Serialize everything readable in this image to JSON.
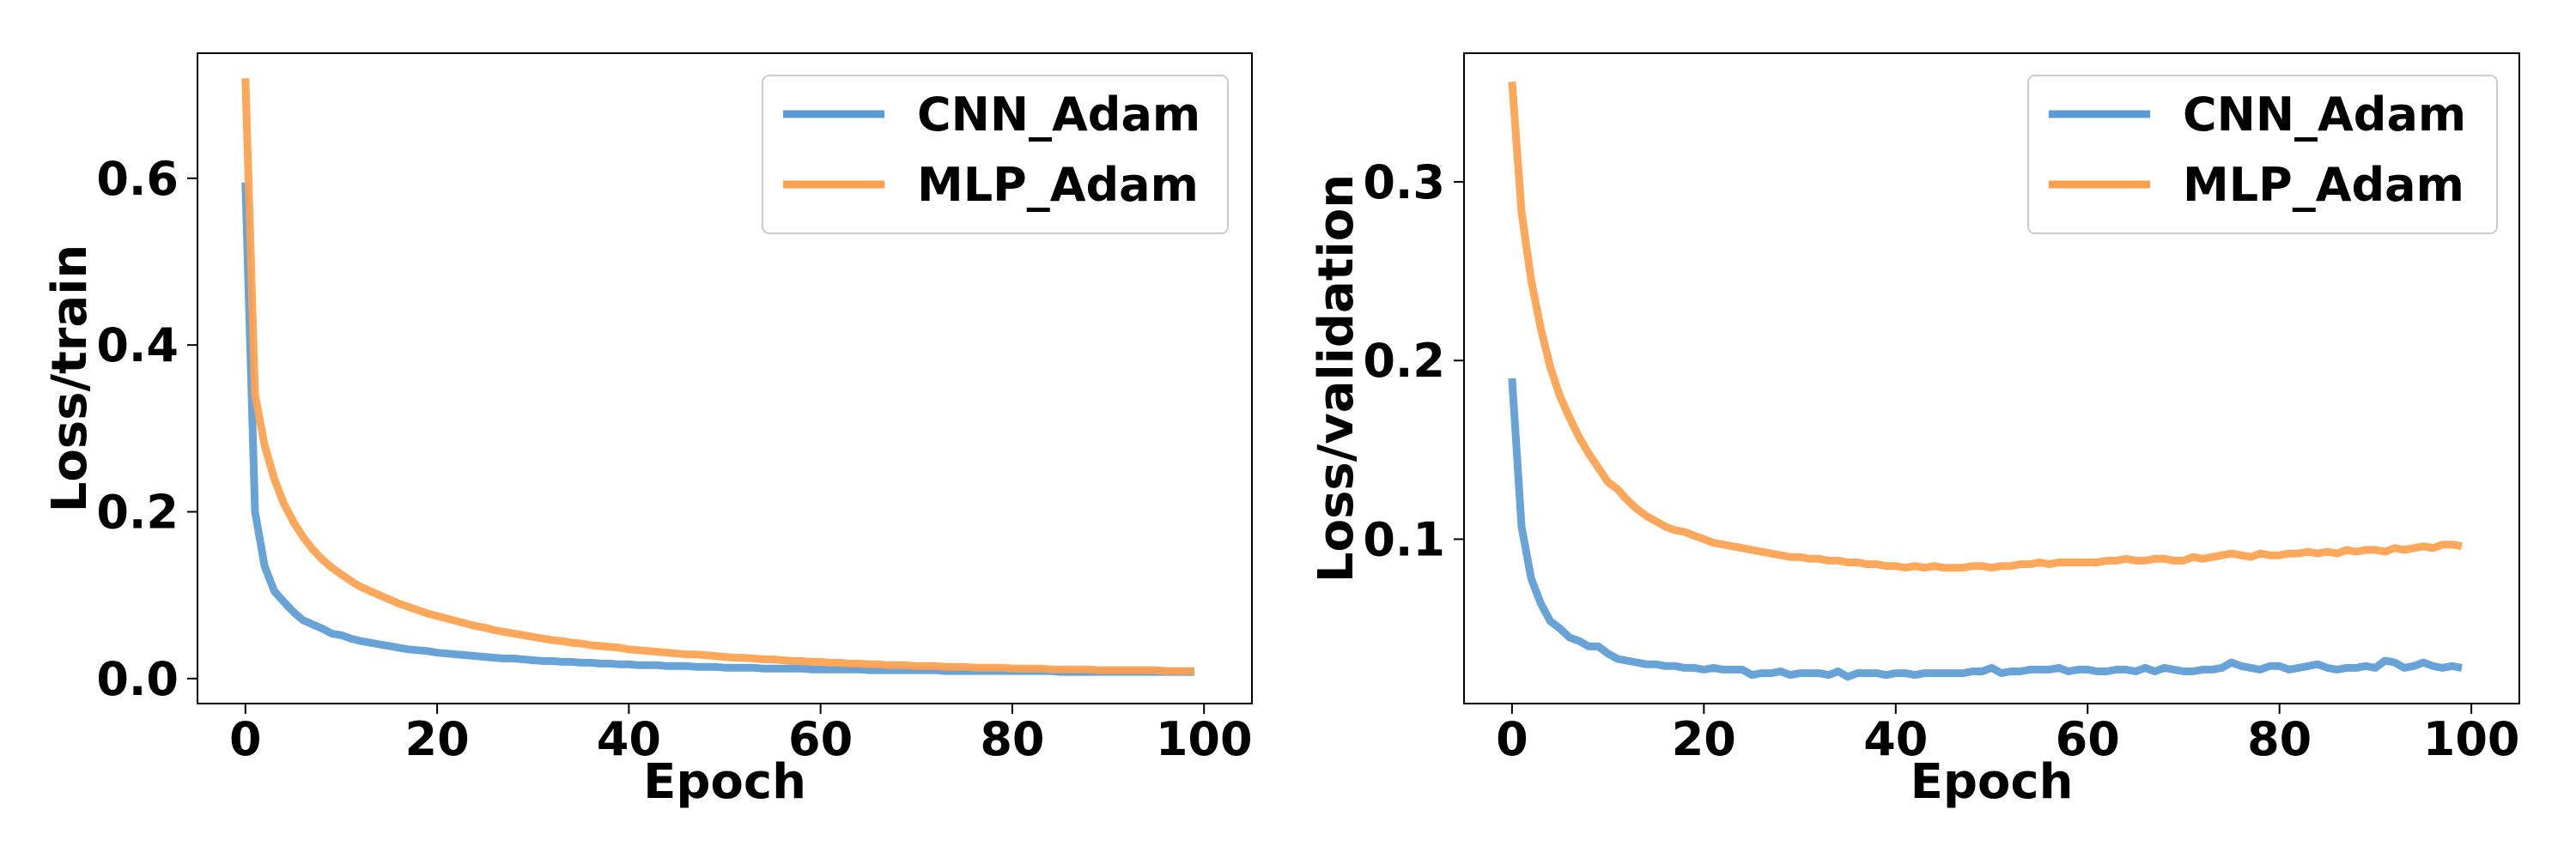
{
  "colors": {
    "cnn": "#5b9bd5",
    "mlp": "#ffa04d",
    "axis": "#000000"
  },
  "chart_data": [
    {
      "type": "line",
      "xlabel": "Epoch",
      "ylabel": "Loss/train",
      "xlim": [
        -5,
        105
      ],
      "ylim": [
        -0.03,
        0.75
      ],
      "xticks": [
        "0",
        "20",
        "40",
        "60",
        "80",
        "100"
      ],
      "yticks": [
        "0.0",
        "0.2",
        "0.4",
        "0.6"
      ],
      "legend": [
        "CNN_Adam",
        "MLP_Adam"
      ],
      "legend_position": "top-right",
      "grid": false,
      "series": [
        {
          "name": "CNN_Adam",
          "x": [
            0,
            1,
            2,
            3,
            4,
            5,
            6,
            7,
            8,
            9,
            10,
            11,
            12,
            13,
            14,
            15,
            16,
            17,
            18,
            19,
            20,
            21,
            22,
            23,
            24,
            25,
            26,
            27,
            28,
            29,
            30,
            31,
            32,
            33,
            34,
            35,
            36,
            37,
            38,
            39,
            40,
            41,
            42,
            43,
            44,
            45,
            46,
            47,
            48,
            49,
            50,
            51,
            52,
            53,
            54,
            55,
            56,
            57,
            58,
            59,
            60,
            61,
            62,
            63,
            64,
            65,
            66,
            67,
            68,
            69,
            70,
            71,
            72,
            73,
            74,
            75,
            76,
            77,
            78,
            79,
            80,
            81,
            82,
            83,
            84,
            85,
            86,
            87,
            88,
            89,
            90,
            91,
            92,
            93,
            94,
            95,
            96,
            97,
            98,
            99
          ],
          "y": [
            0.595,
            0.2,
            0.135,
            0.105,
            0.092,
            0.08,
            0.07,
            0.065,
            0.06,
            0.054,
            0.052,
            0.048,
            0.045,
            0.043,
            0.041,
            0.039,
            0.037,
            0.035,
            0.034,
            0.033,
            0.031,
            0.03,
            0.029,
            0.028,
            0.027,
            0.026,
            0.025,
            0.024,
            0.024,
            0.023,
            0.022,
            0.021,
            0.021,
            0.02,
            0.02,
            0.019,
            0.019,
            0.018,
            0.018,
            0.017,
            0.017,
            0.016,
            0.016,
            0.016,
            0.015,
            0.015,
            0.015,
            0.014,
            0.014,
            0.014,
            0.013,
            0.013,
            0.013,
            0.013,
            0.012,
            0.012,
            0.012,
            0.012,
            0.012,
            0.011,
            0.011,
            0.011,
            0.011,
            0.011,
            0.011,
            0.01,
            0.01,
            0.01,
            0.01,
            0.01,
            0.01,
            0.01,
            0.01,
            0.009,
            0.009,
            0.009,
            0.009,
            0.009,
            0.009,
            0.009,
            0.009,
            0.009,
            0.009,
            0.009,
            0.009,
            0.008,
            0.008,
            0.008,
            0.008,
            0.008,
            0.008,
            0.008,
            0.008,
            0.008,
            0.008,
            0.008,
            0.008,
            0.008,
            0.008,
            0.008
          ]
        },
        {
          "name": "MLP_Adam",
          "x": [
            0,
            1,
            2,
            3,
            4,
            5,
            6,
            7,
            8,
            9,
            10,
            11,
            12,
            13,
            14,
            15,
            16,
            17,
            18,
            19,
            20,
            21,
            22,
            23,
            24,
            25,
            26,
            27,
            28,
            29,
            30,
            31,
            32,
            33,
            34,
            35,
            36,
            37,
            38,
            39,
            40,
            41,
            42,
            43,
            44,
            45,
            46,
            47,
            48,
            49,
            50,
            51,
            52,
            53,
            54,
            55,
            56,
            57,
            58,
            59,
            60,
            61,
            62,
            63,
            64,
            65,
            66,
            67,
            68,
            69,
            70,
            71,
            72,
            73,
            74,
            75,
            76,
            77,
            78,
            79,
            80,
            81,
            82,
            83,
            84,
            85,
            86,
            87,
            88,
            89,
            90,
            91,
            92,
            93,
            94,
            95,
            96,
            97,
            98,
            99
          ],
          "y": [
            0.72,
            0.34,
            0.28,
            0.24,
            0.21,
            0.188,
            0.17,
            0.155,
            0.143,
            0.133,
            0.125,
            0.117,
            0.11,
            0.105,
            0.1,
            0.095,
            0.09,
            0.086,
            0.082,
            0.078,
            0.075,
            0.072,
            0.069,
            0.066,
            0.063,
            0.061,
            0.058,
            0.056,
            0.054,
            0.052,
            0.05,
            0.048,
            0.046,
            0.045,
            0.043,
            0.042,
            0.04,
            0.039,
            0.038,
            0.037,
            0.035,
            0.034,
            0.033,
            0.032,
            0.031,
            0.03,
            0.029,
            0.029,
            0.028,
            0.027,
            0.026,
            0.025,
            0.025,
            0.024,
            0.023,
            0.023,
            0.022,
            0.021,
            0.021,
            0.02,
            0.02,
            0.019,
            0.019,
            0.018,
            0.018,
            0.017,
            0.017,
            0.016,
            0.016,
            0.016,
            0.015,
            0.015,
            0.015,
            0.014,
            0.014,
            0.014,
            0.013,
            0.013,
            0.013,
            0.013,
            0.012,
            0.012,
            0.012,
            0.012,
            0.011,
            0.011,
            0.011,
            0.011,
            0.011,
            0.01,
            0.01,
            0.01,
            0.01,
            0.01,
            0.01,
            0.01,
            0.009,
            0.009,
            0.009,
            0.009
          ]
        }
      ]
    },
    {
      "type": "line",
      "xlabel": "Epoch",
      "ylabel": "Loss/validation",
      "xlim": [
        -5,
        105
      ],
      "ylim": [
        0.008,
        0.372
      ],
      "xticks": [
        "0",
        "20",
        "40",
        "60",
        "80",
        "100"
      ],
      "yticks": [
        "0.1",
        "0.2",
        "0.3"
      ],
      "legend": [
        "CNN_Adam",
        "MLP_Adam"
      ],
      "legend_position": "top-right",
      "grid": false,
      "series": [
        {
          "name": "CNN_Adam",
          "x": [
            0,
            1,
            2,
            3,
            4,
            5,
            6,
            7,
            8,
            9,
            10,
            11,
            12,
            13,
            14,
            15,
            16,
            17,
            18,
            19,
            20,
            21,
            22,
            23,
            24,
            25,
            26,
            27,
            28,
            29,
            30,
            31,
            32,
            33,
            34,
            35,
            36,
            37,
            38,
            39,
            40,
            41,
            42,
            43,
            44,
            45,
            46,
            47,
            48,
            49,
            50,
            51,
            52,
            53,
            54,
            55,
            56,
            57,
            58,
            59,
            60,
            61,
            62,
            63,
            64,
            65,
            66,
            67,
            68,
            69,
            70,
            71,
            72,
            73,
            74,
            75,
            76,
            77,
            78,
            79,
            80,
            81,
            82,
            83,
            84,
            85,
            86,
            87,
            88,
            89,
            90,
            91,
            92,
            93,
            94,
            95,
            96,
            97,
            98,
            99
          ],
          "y": [
            0.19,
            0.107,
            0.078,
            0.064,
            0.054,
            0.05,
            0.045,
            0.043,
            0.04,
            0.04,
            0.036,
            0.033,
            0.032,
            0.031,
            0.03,
            0.03,
            0.029,
            0.029,
            0.028,
            0.028,
            0.027,
            0.028,
            0.027,
            0.027,
            0.027,
            0.024,
            0.025,
            0.025,
            0.026,
            0.024,
            0.025,
            0.025,
            0.025,
            0.024,
            0.026,
            0.023,
            0.025,
            0.025,
            0.025,
            0.024,
            0.025,
            0.025,
            0.024,
            0.025,
            0.025,
            0.025,
            0.025,
            0.025,
            0.026,
            0.026,
            0.028,
            0.025,
            0.026,
            0.026,
            0.027,
            0.027,
            0.027,
            0.028,
            0.026,
            0.027,
            0.027,
            0.026,
            0.026,
            0.027,
            0.027,
            0.026,
            0.028,
            0.026,
            0.028,
            0.027,
            0.026,
            0.026,
            0.027,
            0.027,
            0.028,
            0.031,
            0.029,
            0.028,
            0.027,
            0.029,
            0.029,
            0.027,
            0.028,
            0.029,
            0.03,
            0.028,
            0.027,
            0.028,
            0.028,
            0.029,
            0.028,
            0.032,
            0.031,
            0.028,
            0.029,
            0.031,
            0.029,
            0.028,
            0.029,
            0.028
          ]
        },
        {
          "name": "MLP_Adam",
          "x": [
            0,
            1,
            2,
            3,
            4,
            5,
            6,
            7,
            8,
            9,
            10,
            11,
            12,
            13,
            14,
            15,
            16,
            17,
            18,
            19,
            20,
            21,
            22,
            23,
            24,
            25,
            26,
            27,
            28,
            29,
            30,
            31,
            32,
            33,
            34,
            35,
            36,
            37,
            38,
            39,
            40,
            41,
            42,
            43,
            44,
            45,
            46,
            47,
            48,
            49,
            50,
            51,
            52,
            53,
            54,
            55,
            56,
            57,
            58,
            59,
            60,
            61,
            62,
            63,
            64,
            65,
            66,
            67,
            68,
            69,
            70,
            71,
            72,
            73,
            74,
            75,
            76,
            77,
            78,
            79,
            80,
            81,
            82,
            83,
            84,
            85,
            86,
            87,
            88,
            89,
            90,
            91,
            92,
            93,
            94,
            95,
            96,
            97,
            98,
            99
          ],
          "y": [
            0.356,
            0.283,
            0.245,
            0.218,
            0.196,
            0.18,
            0.168,
            0.157,
            0.148,
            0.14,
            0.132,
            0.128,
            0.122,
            0.117,
            0.113,
            0.11,
            0.107,
            0.105,
            0.104,
            0.102,
            0.1,
            0.098,
            0.097,
            0.096,
            0.095,
            0.094,
            0.093,
            0.092,
            0.091,
            0.09,
            0.09,
            0.089,
            0.089,
            0.088,
            0.088,
            0.087,
            0.087,
            0.086,
            0.086,
            0.085,
            0.085,
            0.084,
            0.085,
            0.084,
            0.085,
            0.084,
            0.084,
            0.084,
            0.085,
            0.085,
            0.084,
            0.085,
            0.085,
            0.086,
            0.086,
            0.087,
            0.086,
            0.087,
            0.087,
            0.087,
            0.087,
            0.087,
            0.088,
            0.088,
            0.089,
            0.088,
            0.088,
            0.089,
            0.089,
            0.088,
            0.088,
            0.09,
            0.089,
            0.09,
            0.091,
            0.092,
            0.091,
            0.09,
            0.092,
            0.091,
            0.091,
            0.092,
            0.092,
            0.093,
            0.092,
            0.093,
            0.092,
            0.094,
            0.093,
            0.094,
            0.094,
            0.093,
            0.095,
            0.094,
            0.095,
            0.096,
            0.095,
            0.097,
            0.097,
            0.096
          ]
        }
      ]
    }
  ]
}
